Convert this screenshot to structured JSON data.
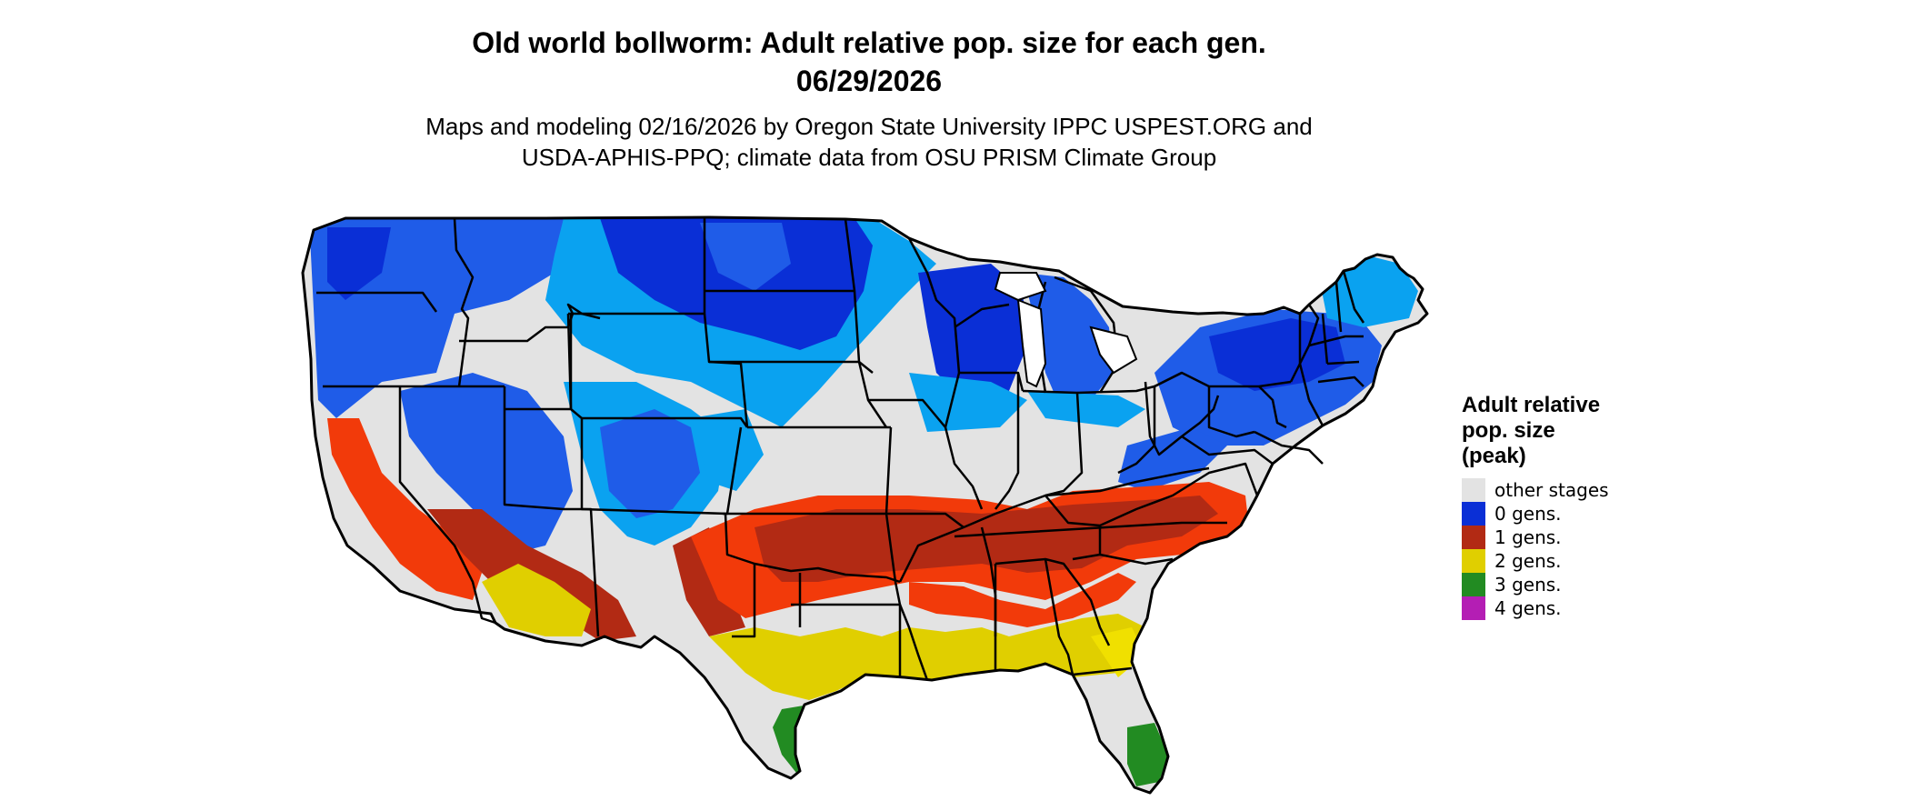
{
  "header": {
    "title_line1": "Old world bollworm: Adult relative pop. size for each gen.",
    "title_line2": "06/29/2026",
    "subtitle_line1": "Maps and modeling 02/16/2026 by Oregon State University IPPC USPEST.ORG and",
    "subtitle_line2": "USDA-APHIS-PPQ; climate data from OSU PRISM Climate Group"
  },
  "map": {
    "region": "conterminous United States",
    "base_color": "#e3e3e3",
    "border_color": "#000000",
    "colors": {
      "gen0_dark": "#0a2fd6",
      "gen0_mid": "#1f5ce8",
      "gen0_light": "#0aa2f0",
      "gen1": "#b22a14",
      "gen1_bright": "#f23a0a",
      "gen2": "#e0cf00",
      "gen3": "#228b22"
    }
  },
  "legend": {
    "title_line1": "Adult relative",
    "title_line2": "pop. size",
    "title_line3": "(peak)",
    "items": [
      {
        "label": "other stages",
        "color": "#e3e3e3"
      },
      {
        "label": "0 gens.",
        "color": "#0a2fd6"
      },
      {
        "label": "1 gens.",
        "color": "#b22a14"
      },
      {
        "label": "2 gens.",
        "color": "#e0cf00"
      },
      {
        "label": "3 gens.",
        "color": "#228b22"
      },
      {
        "label": "4 gens.",
        "color": "#b41eb4"
      }
    ]
  }
}
